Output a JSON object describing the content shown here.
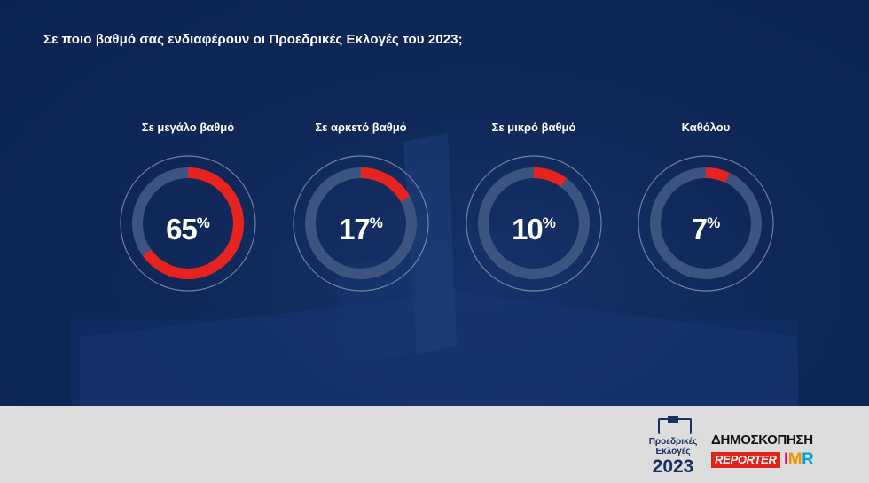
{
  "chart_data": {
    "type": "donut",
    "title": "Σε ποιο βαθμό σας ενδιαφέρουν οι Προεδρικές Εκλογές του 2023;",
    "categories": [
      "Σε μεγάλο βαθμό",
      "Σε αρκετό βαθμό",
      "Σε μικρό βαθμό",
      "Καθόλου"
    ],
    "values": [
      65,
      17,
      10,
      7
    ],
    "unit": "%",
    "max": 100,
    "colors": {
      "fill": "#e8231d",
      "track": "#3e5480",
      "outer_ring": "#8a97b1",
      "background": "#0c2352"
    }
  },
  "footer": {
    "election_logo": {
      "line1": "Προεδρικές",
      "line2": "Εκλογές",
      "year": "2023"
    },
    "survey_logo": {
      "word": "ΔΗΜΟΣΚΟΠΗΣΗ",
      "reporter": "REPORTER",
      "imr": "IMR"
    }
  }
}
